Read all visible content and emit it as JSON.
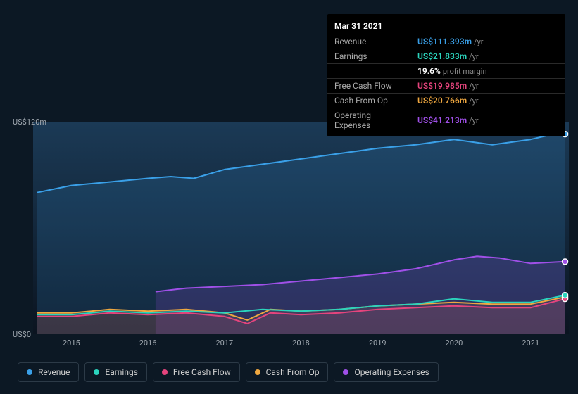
{
  "background_color": "#0c1824",
  "tooltip": {
    "date": "Mar 31 2021",
    "rows": [
      {
        "label": "Revenue",
        "value": "US$111.393m",
        "unit": "/yr",
        "color": "#3aa0e8"
      },
      {
        "label": "Earnings",
        "value": "US$21.833m",
        "unit": "/yr",
        "color": "#2bd4bd"
      },
      {
        "label": "",
        "value": "19.6%",
        "unit": "",
        "pm_label": "profit margin",
        "color": "#ffffff"
      },
      {
        "label": "Free Cash Flow",
        "value": "US$19.985m",
        "unit": "/yr",
        "color": "#e6447d"
      },
      {
        "label": "Cash From Op",
        "value": "US$20.766m",
        "unit": "/yr",
        "color": "#f0a840"
      },
      {
        "label": "Operating Expenses",
        "value": "US$41.213m",
        "unit": "/yr",
        "color": "#a050e8"
      }
    ]
  },
  "chart": {
    "type": "area",
    "plot_bg_gradient": {
      "top": "#1b3a56",
      "bottom": "#0b1420"
    },
    "ylim": [
      0,
      120
    ],
    "ylabels": [
      {
        "text": "US$120m",
        "y": 120
      },
      {
        "text": "US$0",
        "y": 0
      }
    ],
    "x_years": [
      2015,
      2016,
      2017,
      2018,
      2019,
      2020,
      2021
    ],
    "x_domain": [
      2014.5,
      2021.5
    ],
    "series": [
      {
        "id": "revenue",
        "label": "Revenue",
        "color": "#3aa0e8",
        "fill_opacity": 0.15,
        "area": true,
        "points": [
          [
            2014.55,
            80
          ],
          [
            2015.0,
            84
          ],
          [
            2015.5,
            86
          ],
          [
            2016.0,
            88
          ],
          [
            2016.3,
            89
          ],
          [
            2016.6,
            88
          ],
          [
            2017.0,
            93
          ],
          [
            2017.5,
            96
          ],
          [
            2018.0,
            99
          ],
          [
            2018.5,
            102
          ],
          [
            2019.0,
            105
          ],
          [
            2019.5,
            107
          ],
          [
            2020.0,
            110
          ],
          [
            2020.5,
            107
          ],
          [
            2021.0,
            110
          ],
          [
            2021.3,
            113
          ],
          [
            2021.45,
            113
          ]
        ]
      },
      {
        "id": "op_exp",
        "label": "Operating Expenses",
        "color": "#a050e8",
        "fill_opacity": 0.18,
        "area": true,
        "x_start": 2016.1,
        "points": [
          [
            2016.1,
            24
          ],
          [
            2016.5,
            26
          ],
          [
            2017.0,
            27
          ],
          [
            2017.5,
            28
          ],
          [
            2018.0,
            30
          ],
          [
            2018.5,
            32
          ],
          [
            2019.0,
            34
          ],
          [
            2019.5,
            37
          ],
          [
            2020.0,
            42
          ],
          [
            2020.3,
            44
          ],
          [
            2020.6,
            43
          ],
          [
            2021.0,
            40
          ],
          [
            2021.45,
            41
          ]
        ]
      },
      {
        "id": "cash_from_op",
        "label": "Cash From Op",
        "color": "#f0a840",
        "fill_opacity": 0.1,
        "area": true,
        "points": [
          [
            2014.55,
            12
          ],
          [
            2015.0,
            12
          ],
          [
            2015.5,
            14
          ],
          [
            2016.0,
            13
          ],
          [
            2016.5,
            14
          ],
          [
            2017.0,
            12
          ],
          [
            2017.3,
            8
          ],
          [
            2017.6,
            14
          ],
          [
            2018.0,
            13
          ],
          [
            2018.5,
            14
          ],
          [
            2019.0,
            16
          ],
          [
            2019.5,
            17
          ],
          [
            2020.0,
            18
          ],
          [
            2020.5,
            17
          ],
          [
            2021.0,
            17
          ],
          [
            2021.45,
            21
          ]
        ]
      },
      {
        "id": "fcf",
        "label": "Free Cash Flow",
        "color": "#e6447d",
        "fill_opacity": 0.1,
        "area": true,
        "points": [
          [
            2014.55,
            10
          ],
          [
            2015.0,
            10
          ],
          [
            2015.5,
            12
          ],
          [
            2016.0,
            11
          ],
          [
            2016.5,
            12
          ],
          [
            2017.0,
            10
          ],
          [
            2017.3,
            6
          ],
          [
            2017.6,
            12
          ],
          [
            2018.0,
            11
          ],
          [
            2018.5,
            12
          ],
          [
            2019.0,
            14
          ],
          [
            2019.5,
            15
          ],
          [
            2020.0,
            16
          ],
          [
            2020.5,
            15
          ],
          [
            2021.0,
            15
          ],
          [
            2021.45,
            20
          ]
        ]
      },
      {
        "id": "earnings",
        "label": "Earnings",
        "color": "#2bd4bd",
        "fill_opacity": 0.0,
        "area": false,
        "points": [
          [
            2014.55,
            11
          ],
          [
            2015.0,
            11
          ],
          [
            2015.5,
            13
          ],
          [
            2016.0,
            12
          ],
          [
            2016.5,
            13
          ],
          [
            2017.0,
            12
          ],
          [
            2017.5,
            14
          ],
          [
            2018.0,
            13
          ],
          [
            2018.5,
            14
          ],
          [
            2019.0,
            16
          ],
          [
            2019.5,
            17
          ],
          [
            2020.0,
            20
          ],
          [
            2020.5,
            18
          ],
          [
            2021.0,
            18
          ],
          [
            2021.45,
            22
          ]
        ]
      }
    ],
    "endpoint_markers": true,
    "line_width": 2,
    "grid_color": "#3a4652"
  },
  "legend": {
    "items": [
      {
        "id": "revenue",
        "label": "Revenue",
        "color": "#3aa0e8"
      },
      {
        "id": "earnings",
        "label": "Earnings",
        "color": "#2bd4bd"
      },
      {
        "id": "fcf",
        "label": "Free Cash Flow",
        "color": "#e6447d"
      },
      {
        "id": "cash_from_op",
        "label": "Cash From Op",
        "color": "#f0a840"
      },
      {
        "id": "op_exp",
        "label": "Operating Expenses",
        "color": "#a050e8"
      }
    ]
  }
}
